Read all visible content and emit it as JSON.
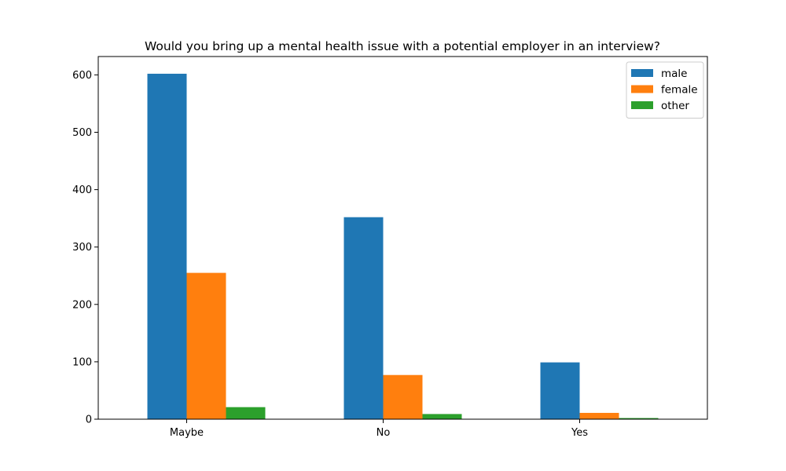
{
  "chart_data": {
    "type": "bar",
    "title": "Would you bring up a mental health issue with a potential employer in an interview?",
    "xlabel": "",
    "ylabel": "",
    "categories": [
      "Maybe",
      "No",
      "Yes"
    ],
    "series": [
      {
        "name": "male",
        "color": "#1f77b4",
        "values": [
          602,
          352,
          99
        ]
      },
      {
        "name": "female",
        "color": "#ff7f0e",
        "values": [
          255,
          77,
          11
        ]
      },
      {
        "name": "other",
        "color": "#2ca02c",
        "values": [
          21,
          9,
          2
        ]
      }
    ],
    "ylim": [
      0,
      632
    ],
    "yticks": [
      0,
      100,
      200,
      300,
      400,
      500,
      600
    ],
    "grid": false,
    "legend": "top-right"
  }
}
